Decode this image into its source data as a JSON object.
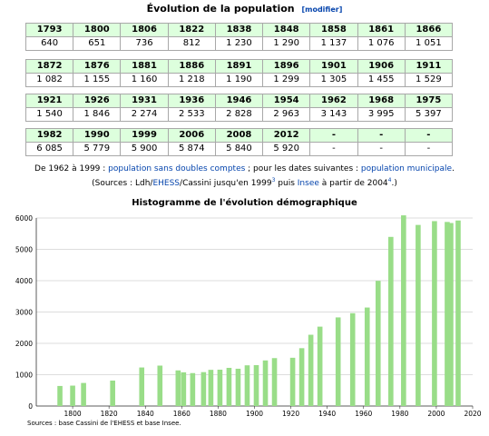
{
  "page": {
    "title": "Évolution de la population",
    "edit_label": "[modifier]"
  },
  "table": {
    "rows": [
      {
        "years": [
          "1793",
          "1800",
          "1806",
          "1822",
          "1838",
          "1848",
          "1858",
          "1861",
          "1866"
        ],
        "values": [
          "640",
          "651",
          "736",
          "812",
          "1 230",
          "1 290",
          "1 137",
          "1 076",
          "1 051"
        ]
      },
      {
        "years": [
          "1872",
          "1876",
          "1881",
          "1886",
          "1891",
          "1896",
          "1901",
          "1906",
          "1911"
        ],
        "values": [
          "1 082",
          "1 155",
          "1 160",
          "1 218",
          "1 190",
          "1 299",
          "1 305",
          "1 455",
          "1 529"
        ]
      },
      {
        "years": [
          "1921",
          "1926",
          "1931",
          "1936",
          "1946",
          "1954",
          "1962",
          "1968",
          "1975"
        ],
        "values": [
          "1 540",
          "1 846",
          "2 274",
          "2 533",
          "2 828",
          "2 963",
          "3 143",
          "3 995",
          "5 397"
        ]
      },
      {
        "years": [
          "1982",
          "1990",
          "1999",
          "2006",
          "2008",
          "2012",
          "-",
          "-",
          "-"
        ],
        "values": [
          "6 085",
          "5 779",
          "5 900",
          "5 874",
          "5 840",
          "5 920",
          "-",
          "-",
          "-"
        ]
      }
    ]
  },
  "note": {
    "line1_a": "De 1962 à 1999 : ",
    "line1_link1": "population sans doubles comptes",
    "line1_b": " ; pour les dates suivantes : ",
    "line1_link2": "population municipale",
    "line1_c": ".",
    "line2_a": "(Sources : Ldh/",
    "line2_link1": "EHESS",
    "line2_b": "/Cassini jusqu'en 1999",
    "line2_sup1": "3",
    "line2_c": " puis ",
    "line2_link2": "Insee",
    "line2_d": " à partir de 2004",
    "line2_sup2": "4",
    "line2_e": ".)"
  },
  "chart_data": {
    "type": "bar",
    "title": "Histogramme de l'évolution démographique",
    "x": [
      1793,
      1800,
      1806,
      1822,
      1838,
      1848,
      1858,
      1861,
      1866,
      1872,
      1876,
      1881,
      1886,
      1891,
      1896,
      1901,
      1906,
      1911,
      1921,
      1926,
      1931,
      1936,
      1946,
      1954,
      1962,
      1968,
      1975,
      1982,
      1990,
      1999,
      2006,
      2008,
      2012
    ],
    "values": [
      640,
      651,
      736,
      812,
      1230,
      1290,
      1137,
      1076,
      1051,
      1082,
      1155,
      1160,
      1218,
      1190,
      1299,
      1305,
      1455,
      1529,
      1540,
      1846,
      2274,
      2533,
      2828,
      2963,
      3143,
      3995,
      5397,
      6085,
      5779,
      5900,
      5874,
      5840,
      5920
    ],
    "xlim": [
      1780,
      2020
    ],
    "xticks": [
      1800,
      1820,
      1840,
      1860,
      1880,
      1900,
      1920,
      1940,
      1960,
      1980,
      2000,
      2020
    ],
    "ylim": [
      0,
      6000
    ],
    "yticks": [
      0,
      1000,
      2000,
      3000,
      4000,
      5000,
      6000
    ],
    "grid": true,
    "bar_color": "#99dd88",
    "sources": "Sources : base Cassini de l'EHESS et base Insee."
  }
}
